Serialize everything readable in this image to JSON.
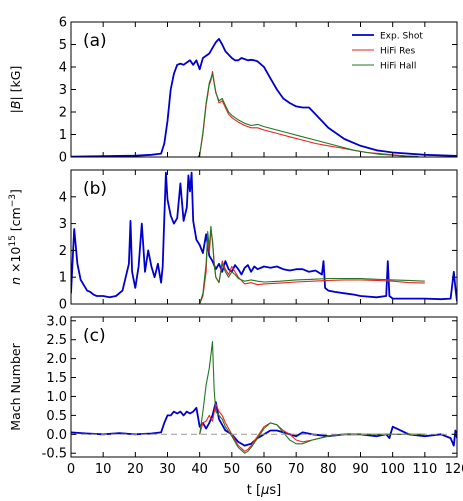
{
  "chart_data": {
    "type": "line",
    "xlabel": "t [μs]",
    "xlim": [
      0,
      120
    ],
    "x_ticks": [
      0,
      10,
      20,
      30,
      40,
      50,
      60,
      70,
      80,
      90,
      100,
      110,
      120
    ],
    "legend": {
      "placement": "top-right",
      "entries": [
        "Exp. Shot",
        "HiFi Res",
        "HiFi Hall"
      ]
    },
    "colors": {
      "exp": "#0000cc",
      "res": "#ee2222",
      "hall": "#227722",
      "dash": "#999999"
    },
    "panels": [
      {
        "label": "(a)",
        "ylabel": "|B| [kG]",
        "ylim": [
          0,
          6
        ],
        "y_ticks": [
          0,
          1,
          2,
          3,
          4,
          5,
          6
        ],
        "series": [
          {
            "name": "Exp. Shot",
            "x": [
              0,
              10,
              20,
              25,
              28,
              29,
              30,
              31,
              32,
              33,
              34,
              35,
              36,
              37,
              38,
              39,
              40,
              41,
              42,
              43,
              44,
              45,
              46,
              47,
              48,
              49,
              50,
              51,
              52,
              53,
              54,
              55,
              56,
              57,
              58,
              60,
              62,
              64,
              66,
              68,
              70,
              72,
              74,
              76,
              78,
              80,
              85,
              90,
              95,
              100,
              110,
              120
            ],
            "y": [
              0.02,
              0.04,
              0.06,
              0.1,
              0.15,
              0.6,
              1.6,
              3.0,
              3.7,
              4.1,
              4.15,
              4.1,
              4.2,
              4.3,
              4.1,
              4.3,
              3.9,
              4.4,
              4.5,
              4.6,
              4.85,
              5.1,
              5.25,
              5.0,
              4.7,
              4.55,
              4.4,
              4.3,
              4.3,
              4.4,
              4.35,
              4.3,
              4.32,
              4.3,
              4.25,
              4.0,
              3.5,
              3.0,
              2.6,
              2.4,
              2.25,
              2.2,
              2.2,
              1.9,
              1.6,
              1.3,
              0.8,
              0.5,
              0.3,
              0.2,
              0.1,
              0.05
            ]
          },
          {
            "name": "HiFi Res",
            "x": [
              39.5,
              40,
              41,
              42,
              43,
              43.5,
              44,
              45,
              46,
              47,
              48,
              49,
              50,
              51,
              52,
              54,
              56,
              58,
              60,
              64,
              68,
              72,
              76,
              80,
              84,
              88,
              92,
              96,
              100,
              104,
              108
            ],
            "y": [
              0,
              0.1,
              1.0,
              2.3,
              3.2,
              3.4,
              3.8,
              2.9,
              2.4,
              2.5,
              2.2,
              1.9,
              1.75,
              1.65,
              1.55,
              1.4,
              1.3,
              1.3,
              1.2,
              1.05,
              0.9,
              0.75,
              0.6,
              0.5,
              0.4,
              0.3,
              0.2,
              0.15,
              0.1,
              0.05,
              0.02
            ]
          },
          {
            "name": "HiFi Hall",
            "x": [
              39.5,
              40,
              41,
              42,
              43,
              43.5,
              44,
              45,
              46,
              47,
              48,
              49,
              50,
              51,
              52,
              54,
              56,
              58,
              60,
              64,
              68,
              72,
              76,
              80,
              84,
              88,
              92,
              96,
              100,
              104,
              108
            ],
            "y": [
              0,
              0.1,
              1.1,
              2.4,
              3.3,
              3.5,
              3.7,
              2.85,
              2.5,
              2.6,
              2.3,
              2.0,
              1.85,
              1.75,
              1.65,
              1.5,
              1.4,
              1.45,
              1.35,
              1.2,
              1.05,
              0.9,
              0.75,
              0.6,
              0.45,
              0.3,
              0.2,
              0.12,
              0.08,
              0.04,
              0.02
            ]
          }
        ]
      },
      {
        "label": "(b)",
        "ylabel": "n ×10^15 [cm^-3]",
        "ylim": [
          0,
          5
        ],
        "y_ticks": [
          0,
          1,
          2,
          3,
          4
        ],
        "series": [
          {
            "name": "Exp. Shot",
            "x": [
              0,
              1,
              2,
              3,
              4,
              5,
              6,
              7,
              8,
              10,
              12,
              14,
              16,
              17,
              18,
              18.5,
              19,
              19.5,
              20,
              21,
              22,
              23,
              24,
              25,
              26,
              27,
              28,
              28.5,
              29,
              29.5,
              30,
              31,
              32,
              33,
              34,
              35,
              36,
              36.5,
              37,
              37.5,
              38,
              39,
              40,
              41,
              42,
              43,
              44,
              45,
              46,
              47,
              48,
              49,
              50,
              51,
              52,
              53,
              54,
              55,
              56,
              57,
              58,
              60,
              62,
              64,
              66,
              68,
              70,
              72,
              74,
              76,
              78,
              78.5,
              79,
              80,
              82,
              85,
              88,
              90,
              95,
              98,
              98.5,
              99,
              100,
              105,
              110,
              115,
              118,
              119,
              119.5,
              120
            ],
            "y": [
              0.4,
              2.8,
              1.5,
              0.9,
              0.7,
              0.5,
              0.45,
              0.35,
              0.3,
              0.3,
              0.25,
              0.3,
              0.5,
              1.0,
              1.5,
              3.1,
              1.2,
              0.9,
              0.6,
              1.4,
              3.0,
              1.2,
              2.0,
              1.4,
              1.0,
              1.5,
              0.8,
              1.4,
              3.2,
              4.9,
              3.9,
              3.3,
              3.0,
              3.2,
              4.5,
              3.1,
              3.6,
              4.8,
              4.2,
              4.9,
              3.1,
              2.4,
              2.2,
              1.9,
              2.6,
              1.8,
              1.6,
              1.3,
              1.5,
              1.2,
              1.6,
              1.3,
              1.2,
              1.45,
              1.3,
              1.1,
              1.35,
              1.45,
              1.2,
              1.4,
              1.3,
              1.4,
              1.35,
              1.4,
              1.3,
              1.25,
              1.3,
              1.3,
              1.2,
              1.25,
              1.1,
              1.6,
              0.6,
              0.5,
              0.45,
              0.4,
              0.35,
              0.3,
              0.25,
              0.3,
              1.6,
              0.3,
              0.2,
              0.2,
              0.2,
              0.18,
              0.2,
              1.2,
              0.6,
              0.1
            ]
          },
          {
            "name": "HiFi Res",
            "x": [
              40,
              41,
              42,
              42.5,
              43,
              43.5,
              44,
              44.5,
              45,
              46,
              47,
              48,
              49,
              50,
              51,
              52,
              54,
              56,
              58,
              60,
              65,
              70,
              75,
              80,
              85,
              90,
              95,
              100,
              105,
              110
            ],
            "y": [
              0,
              0.3,
              1.2,
              2.5,
              1.9,
              2.7,
              2.4,
              1.6,
              1.0,
              0.8,
              1.6,
              1.3,
              1.1,
              1.4,
              1.2,
              1.0,
              0.75,
              0.8,
              0.72,
              0.75,
              0.78,
              0.82,
              0.85,
              0.88,
              0.9,
              0.9,
              0.88,
              0.85,
              0.8,
              0.78
            ]
          },
          {
            "name": "HiFi Hall",
            "x": [
              40,
              41,
              42,
              42.5,
              43,
              43.5,
              44,
              44.5,
              45,
              46,
              47,
              48,
              49,
              50,
              51,
              52,
              54,
              56,
              58,
              60,
              65,
              70,
              75,
              80,
              85,
              90,
              95,
              100,
              105,
              110
            ],
            "y": [
              0,
              0.4,
              1.5,
              2.7,
              2.1,
              2.9,
              2.3,
              1.5,
              1.0,
              0.8,
              1.5,
              1.2,
              1.0,
              1.2,
              1.1,
              0.95,
              0.85,
              0.9,
              0.85,
              0.82,
              0.85,
              0.9,
              0.92,
              0.95,
              0.95,
              0.95,
              0.92,
              0.9,
              0.88,
              0.85
            ]
          }
        ]
      },
      {
        "label": "(c)",
        "ylabel": "Mach Number",
        "ylim": [
          -0.6,
          3.1
        ],
        "y_ticks": [
          -0.5,
          0.0,
          0.5,
          1.0,
          1.5,
          2.0,
          2.5,
          3.0
        ],
        "series": [
          {
            "name": "Exp. Shot",
            "x": [
              0,
              5,
              10,
              15,
              20,
              25,
              28,
              29,
              30,
              31,
              32,
              33,
              34,
              35,
              36,
              37,
              38,
              39,
              40,
              41,
              42,
              43,
              44,
              45,
              46,
              47,
              48,
              50,
              52,
              54,
              56,
              58,
              60,
              62,
              64,
              66,
              68,
              70,
              72,
              75,
              80,
              85,
              90,
              95,
              98,
              99,
              100,
              105,
              110,
              115,
              118,
              119,
              119.5,
              120
            ],
            "y": [
              0.05,
              0.02,
              0.0,
              0.03,
              0.0,
              0.02,
              0.05,
              0.3,
              0.5,
              0.5,
              0.6,
              0.55,
              0.6,
              0.5,
              0.6,
              0.55,
              0.6,
              0.7,
              0.2,
              0.3,
              0.15,
              0.3,
              0.5,
              0.85,
              0.4,
              0.25,
              0.1,
              0.0,
              -0.2,
              -0.3,
              -0.25,
              -0.1,
              0.0,
              0.1,
              0.1,
              0.05,
              0.0,
              -0.05,
              0.05,
              0.0,
              -0.05,
              0.0,
              0.0,
              -0.05,
              0.0,
              -0.1,
              0.2,
              0.0,
              -0.05,
              0.0,
              -0.1,
              -0.3,
              0.1,
              -0.1
            ]
          },
          {
            "name": "HiFi Res",
            "x": [
              40,
              41,
              42,
              43,
              44,
              45,
              46,
              47,
              48,
              50,
              52,
              54,
              55,
              56,
              58,
              60,
              62,
              64,
              66,
              68,
              70,
              72,
              75,
              80,
              85,
              90,
              95,
              100,
              105,
              110
            ],
            "y": [
              0.0,
              0.3,
              0.35,
              0.5,
              0.35,
              0.8,
              0.6,
              0.5,
              0.3,
              0.0,
              -0.3,
              -0.45,
              -0.4,
              -0.3,
              -0.05,
              0.2,
              0.3,
              0.25,
              0.1,
              0.0,
              -0.15,
              -0.2,
              -0.15,
              -0.05,
              0.0,
              0.0,
              0.0,
              0.0,
              0.0,
              0.0
            ]
          },
          {
            "name": "HiFi Hall",
            "x": [
              40,
              41,
              42,
              43,
              44,
              44.5,
              45,
              46,
              47,
              48,
              50,
              52,
              54,
              55,
              56,
              58,
              60,
              62,
              64,
              66,
              68,
              70,
              72,
              75,
              80,
              85,
              90,
              95,
              100,
              105,
              110
            ],
            "y": [
              0.0,
              0.6,
              1.3,
              1.75,
              2.45,
              1.2,
              0.6,
              0.5,
              0.4,
              0.2,
              -0.05,
              -0.35,
              -0.5,
              -0.45,
              -0.35,
              -0.1,
              0.15,
              0.3,
              0.25,
              0.05,
              -0.15,
              -0.25,
              -0.25,
              -0.15,
              -0.05,
              0.0,
              0.0,
              0.0,
              0.0,
              0.0,
              0.0
            ]
          },
          {
            "name": "",
            "x": [
              0,
              120
            ],
            "y": [
              0,
              0
            ]
          }
        ]
      }
    ]
  }
}
